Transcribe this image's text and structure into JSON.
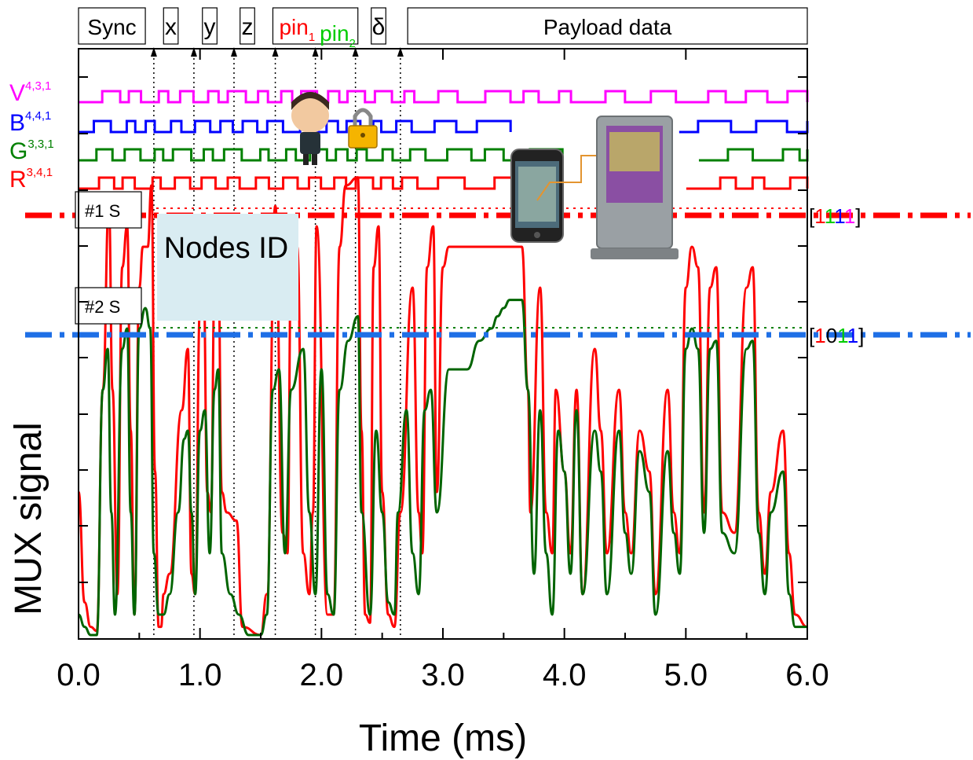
{
  "chart_data": {
    "type": "line",
    "xlabel": "Time (ms)",
    "ylabel": "MUX signal",
    "xlim": [
      0.0,
      6.0
    ],
    "x_ticks": [
      "0.0",
      "1.0",
      "2.0",
      "3.0",
      "4.0",
      "5.0",
      "6.0"
    ],
    "grid": false,
    "header_fields": [
      {
        "label": "Sync",
        "color": "#000000",
        "start": 0.0,
        "end": 0.55
      },
      {
        "label": "x",
        "color": "#000000",
        "start": 0.7,
        "end": 0.82
      },
      {
        "label": "y",
        "color": "#000000",
        "start": 1.02,
        "end": 1.14
      },
      {
        "label": "z",
        "color": "#000000",
        "start": 1.33,
        "end": 1.45
      },
      {
        "label": "pin",
        "sub": "1",
        "color": "#ff0000",
        "start": 1.6,
        "end": 2.3
      },
      {
        "label": "pin",
        "sub": "2",
        "color": "#00cc00",
        "start": 1.6,
        "end": 2.3
      },
      {
        "label": "δ",
        "color": "#000000",
        "start": 2.41,
        "end": 2.53
      },
      {
        "label": "Payload data",
        "color": "#000000",
        "start": 2.71,
        "end": 6.0
      }
    ],
    "markers": [
      0.62,
      0.95,
      1.28,
      1.62,
      1.95,
      2.28,
      2.65
    ],
    "channels": [
      {
        "name": "V",
        "sub": "4,3,1",
        "color": "#ff00ff"
      },
      {
        "name": "B",
        "sub": "4,4,1",
        "color": "#0000ff"
      },
      {
        "name": "G",
        "sub": "3,3,1",
        "color": "#008000"
      },
      {
        "name": "R",
        "sub": "3,4,1",
        "color": "#ff0000"
      }
    ],
    "series": [
      {
        "color": "#ff0000",
        "points": [
          [
            0.0,
            0.35
          ],
          [
            0.05,
            0.08
          ],
          [
            0.1,
            0.02
          ],
          [
            0.15,
            0.01
          ],
          [
            0.2,
            0.6
          ],
          [
            0.25,
            1.05
          ],
          [
            0.28,
            0.6
          ],
          [
            0.32,
            0.1
          ],
          [
            0.36,
            0.9
          ],
          [
            0.4,
            1.0
          ],
          [
            0.43,
            0.5
          ],
          [
            0.46,
            0.05
          ],
          [
            0.5,
            0.85
          ],
          [
            0.53,
            0.95
          ],
          [
            0.57,
            0.95
          ],
          [
            0.6,
            1.1
          ],
          [
            0.63,
            0.4
          ],
          [
            0.66,
            0.02
          ],
          [
            0.68,
            0.02
          ],
          [
            0.7,
            0.1
          ],
          [
            0.75,
            0.15
          ],
          [
            0.85,
            0.55
          ],
          [
            0.9,
            0.7
          ],
          [
            0.93,
            0.15
          ],
          [
            0.96,
            0.1
          ],
          [
            1.0,
            0.8
          ],
          [
            1.03,
            0.85
          ],
          [
            1.06,
            0.35
          ],
          [
            1.09,
            0.3
          ],
          [
            1.12,
            0.85
          ],
          [
            1.15,
            0.9
          ],
          [
            1.18,
            0.35
          ],
          [
            1.22,
            0.3
          ],
          [
            1.3,
            0.28
          ],
          [
            1.35,
            0.02
          ],
          [
            1.5,
            0.0
          ],
          [
            1.55,
            0.1
          ],
          [
            1.62,
            1.05
          ],
          [
            1.68,
            0.25
          ],
          [
            1.72,
            0.2
          ],
          [
            1.75,
            0.9
          ],
          [
            1.8,
            0.95
          ],
          [
            1.85,
            0.2
          ],
          [
            1.9,
            0.1
          ],
          [
            1.93,
            0.3
          ],
          [
            1.96,
            1.0
          ],
          [
            2.05,
            0.05
          ],
          [
            2.1,
            0.05
          ],
          [
            2.15,
            0.95
          ],
          [
            2.2,
            1.1
          ],
          [
            2.3,
            1.12
          ],
          [
            2.33,
            0.5
          ],
          [
            2.36,
            0.05
          ],
          [
            2.4,
            0.03
          ],
          [
            2.43,
            0.9
          ],
          [
            2.47,
            1.0
          ],
          [
            2.5,
            0.35
          ],
          [
            2.55,
            0.05
          ],
          [
            2.6,
            0.02
          ],
          [
            2.65,
            0.3
          ],
          [
            2.75,
            0.85
          ],
          [
            2.8,
            0.3
          ],
          [
            2.83,
            0.2
          ],
          [
            2.87,
            0.9
          ],
          [
            2.92,
            1.0
          ],
          [
            2.95,
            0.35
          ],
          [
            3.0,
            0.9
          ],
          [
            3.05,
            0.95
          ],
          [
            3.08,
            0.95
          ],
          [
            3.12,
            0.95
          ],
          [
            3.15,
            0.95
          ],
          [
            3.25,
            0.95
          ],
          [
            3.4,
            0.95
          ],
          [
            3.5,
            0.95
          ],
          [
            3.6,
            0.95
          ],
          [
            3.65,
            0.95
          ],
          [
            3.7,
            0.6
          ],
          [
            3.72,
            0.3
          ],
          [
            3.8,
            0.85
          ],
          [
            3.85,
            0.3
          ],
          [
            3.9,
            0.2
          ],
          [
            3.93,
            0.6
          ],
          [
            4.0,
            0.4
          ],
          [
            4.05,
            0.2
          ],
          [
            4.1,
            0.6
          ],
          [
            4.15,
            0.1
          ],
          [
            4.25,
            0.7
          ],
          [
            4.3,
            0.5
          ],
          [
            4.35,
            0.2
          ],
          [
            4.45,
            0.6
          ],
          [
            4.5,
            0.3
          ],
          [
            4.55,
            0.2
          ],
          [
            4.62,
            0.5
          ],
          [
            4.7,
            0.4
          ],
          [
            4.75,
            0.1
          ],
          [
            4.85,
            0.6
          ],
          [
            4.9,
            0.3
          ],
          [
            4.95,
            0.2
          ],
          [
            5.0,
            0.85
          ],
          [
            5.05,
            0.95
          ],
          [
            5.1,
            0.9
          ],
          [
            5.15,
            0.3
          ],
          [
            5.2,
            0.85
          ],
          [
            5.25,
            0.9
          ],
          [
            5.3,
            0.3
          ],
          [
            5.4,
            0.25
          ],
          [
            5.5,
            0.85
          ],
          [
            5.55,
            0.9
          ],
          [
            5.6,
            0.3
          ],
          [
            5.65,
            0.15
          ],
          [
            5.7,
            0.35
          ],
          [
            5.8,
            0.5
          ],
          [
            5.85,
            0.2
          ],
          [
            5.9,
            0.05
          ],
          [
            6.0,
            0.02
          ]
        ]
      },
      {
        "color": "#006400",
        "points": [
          [
            0.0,
            0.05
          ],
          [
            0.05,
            0.02
          ],
          [
            0.1,
            0.0
          ],
          [
            0.15,
            0.0
          ],
          [
            0.2,
            0.6
          ],
          [
            0.24,
            0.7
          ],
          [
            0.27,
            0.3
          ],
          [
            0.3,
            0.05
          ],
          [
            0.36,
            0.7
          ],
          [
            0.4,
            0.75
          ],
          [
            0.43,
            0.3
          ],
          [
            0.46,
            0.05
          ],
          [
            0.5,
            0.75
          ],
          [
            0.55,
            0.8
          ],
          [
            0.59,
            0.75
          ],
          [
            0.62,
            0.2
          ],
          [
            0.66,
            0.05
          ],
          [
            0.7,
            0.05
          ],
          [
            0.75,
            0.1
          ],
          [
            0.82,
            0.3
          ],
          [
            0.87,
            0.48
          ],
          [
            0.9,
            0.5
          ],
          [
            0.93,
            0.3
          ],
          [
            0.96,
            0.1
          ],
          [
            1.0,
            0.5
          ],
          [
            1.04,
            0.55
          ],
          [
            1.08,
            0.2
          ],
          [
            1.12,
            0.6
          ],
          [
            1.15,
            0.65
          ],
          [
            1.18,
            0.2
          ],
          [
            1.25,
            0.1
          ],
          [
            1.32,
            0.05
          ],
          [
            1.4,
            0.0
          ],
          [
            1.5,
            0.0
          ],
          [
            1.55,
            0.05
          ],
          [
            1.6,
            0.6
          ],
          [
            1.65,
            0.65
          ],
          [
            1.7,
            0.2
          ],
          [
            1.75,
            0.6
          ],
          [
            1.85,
            0.7
          ],
          [
            1.9,
            0.3
          ],
          [
            1.95,
            0.1
          ],
          [
            2.0,
            0.65
          ],
          [
            2.05,
            0.1
          ],
          [
            2.1,
            0.05
          ],
          [
            2.15,
            0.6
          ],
          [
            2.22,
            0.72
          ],
          [
            2.3,
            0.78
          ],
          [
            2.33,
            0.3
          ],
          [
            2.4,
            0.05
          ],
          [
            2.45,
            0.5
          ],
          [
            2.5,
            0.3
          ],
          [
            2.55,
            0.08
          ],
          [
            2.6,
            0.05
          ],
          [
            2.63,
            0.3
          ],
          [
            2.7,
            0.55
          ],
          [
            2.75,
            0.2
          ],
          [
            2.8,
            0.1
          ],
          [
            2.85,
            0.55
          ],
          [
            2.9,
            0.6
          ],
          [
            2.95,
            0.3
          ],
          [
            3.05,
            0.65
          ],
          [
            3.08,
            0.65
          ],
          [
            3.12,
            0.65
          ],
          [
            3.2,
            0.65
          ],
          [
            3.3,
            0.72
          ],
          [
            3.4,
            0.75
          ],
          [
            3.45,
            0.78
          ],
          [
            3.5,
            0.8
          ],
          [
            3.55,
            0.82
          ],
          [
            3.6,
            0.82
          ],
          [
            3.62,
            0.82
          ],
          [
            3.65,
            0.82
          ],
          [
            3.7,
            0.6
          ],
          [
            3.75,
            0.15
          ],
          [
            3.8,
            0.55
          ],
          [
            3.85,
            0.2
          ],
          [
            3.9,
            0.05
          ],
          [
            3.95,
            0.5
          ],
          [
            4.0,
            0.4
          ],
          [
            4.05,
            0.15
          ],
          [
            4.1,
            0.55
          ],
          [
            4.15,
            0.1
          ],
          [
            4.25,
            0.5
          ],
          [
            4.3,
            0.4
          ],
          [
            4.35,
            0.1
          ],
          [
            4.45,
            0.5
          ],
          [
            4.5,
            0.25
          ],
          [
            4.55,
            0.15
          ],
          [
            4.62,
            0.45
          ],
          [
            4.7,
            0.35
          ],
          [
            4.75,
            0.05
          ],
          [
            4.85,
            0.45
          ],
          [
            4.9,
            0.25
          ],
          [
            4.95,
            0.15
          ],
          [
            5.0,
            0.7
          ],
          [
            5.05,
            0.75
          ],
          [
            5.1,
            0.7
          ],
          [
            5.15,
            0.25
          ],
          [
            5.2,
            0.7
          ],
          [
            5.25,
            0.72
          ],
          [
            5.3,
            0.25
          ],
          [
            5.4,
            0.2
          ],
          [
            5.5,
            0.7
          ],
          [
            5.55,
            0.72
          ],
          [
            5.6,
            0.25
          ],
          [
            5.65,
            0.1
          ],
          [
            5.7,
            0.3
          ],
          [
            5.8,
            0.4
          ],
          [
            5.85,
            0.1
          ],
          [
            5.9,
            0.02
          ],
          [
            6.0,
            0.02
          ]
        ]
      }
    ],
    "threshold_lines": [
      {
        "label": "#1 S",
        "code": [
          {
            "d": "1",
            "c": "#ff0000"
          },
          {
            "d": "1",
            "c": "#00cc00"
          },
          {
            "d": "1",
            "c": "#0000ff"
          },
          {
            "d": "1",
            "c": "#ff00ff"
          }
        ],
        "color": "#ff0000",
        "y_level": 1.1
      },
      {
        "label": "#2 S",
        "code": [
          {
            "d": "1",
            "c": "#ff0000"
          },
          {
            "d": "0",
            "c": "#000000"
          },
          {
            "d": "1",
            "c": "#00cc00"
          },
          {
            "d": "1",
            "c": "#0000ff"
          }
        ],
        "color": "#1e6fe6",
        "y_level": 0.85
      }
    ]
  },
  "annotations": {
    "nodes_id_label": "Nodes ID",
    "bracket_open": "[",
    "bracket_close": "]"
  }
}
